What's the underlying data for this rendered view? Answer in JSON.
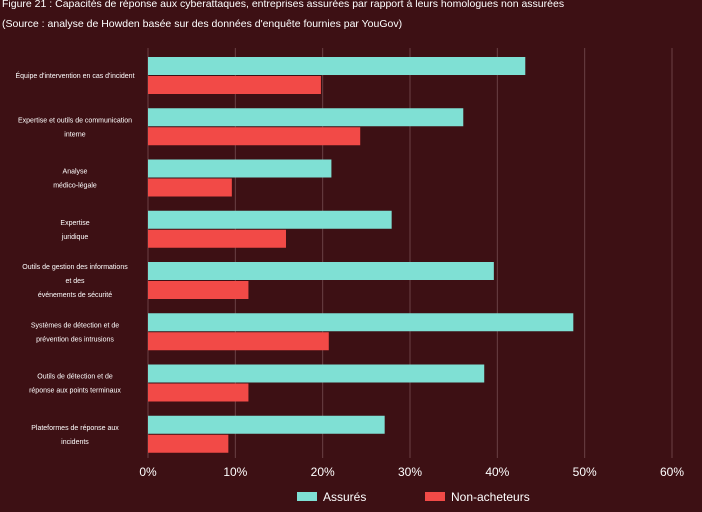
{
  "chart_data": {
    "type": "hbar",
    "title": "Figure 21 : Capacités de réponse aux cyberattaques, entreprises assurées par rapport à leurs homologues non assurées",
    "subtitle": "(Source : analyse de Howden basée sur des données d'enquête fournies par YouGov)",
    "categories": [
      "Équipe d'intervention en cas d'incident",
      "Expertise et outils de communication\ninterne",
      "Analyse\nmédico-légale",
      "Expertise\njuridique",
      "Outils de gestion des informations\net des\névénements de sécurité",
      "Systèmes de détection et de\nprévention des intrusions",
      "Outils de détection et de\nréponse aux points terminaux",
      "Plateformes de réponse aux\nincidents"
    ],
    "series": [
      {
        "name": "Assurés",
        "color": "#7fe0d4",
        "values": [
          43.2,
          36.1,
          21.0,
          27.9,
          39.6,
          48.7,
          38.5,
          27.1
        ]
      },
      {
        "name": "Non-acheteurs",
        "color": "#f24a47",
        "values": [
          19.8,
          24.3,
          9.6,
          15.8,
          11.5,
          20.7,
          11.5,
          9.2
        ]
      }
    ],
    "xlim": [
      0,
      60
    ],
    "xticks": [
      {
        "value": 0,
        "label": "0%"
      },
      {
        "value": 10,
        "label": "10%"
      },
      {
        "value": 20,
        "label": "20%"
      },
      {
        "value": 30,
        "label": "30%"
      },
      {
        "value": 40,
        "label": "40%"
      },
      {
        "value": 50,
        "label": "50%"
      },
      {
        "value": 60,
        "label": "60%"
      }
    ],
    "grid": true,
    "legend": "bottom"
  }
}
